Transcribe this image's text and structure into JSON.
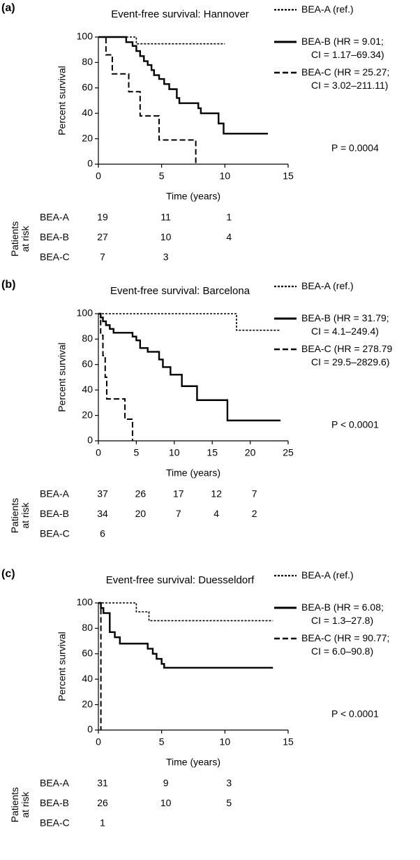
{
  "chart_data": [
    {
      "type": "step",
      "panel": "(a)",
      "title": "Event-free survival: Hannover",
      "xlabel": "Time (years)",
      "ylabel": "Percent survival",
      "xlim": [
        0,
        15
      ],
      "xticks": [
        0,
        5,
        10,
        15
      ],
      "ylim": [
        0,
        100
      ],
      "yticks": [
        0,
        20,
        40,
        60,
        80,
        100
      ],
      "series": [
        {
          "name": "BEA-A (ref.)",
          "color": "#000000",
          "linestyle": "dotted",
          "x": [
            0,
            3,
            3,
            10
          ],
          "values": [
            100,
            100,
            94.7,
            94.7
          ]
        },
        {
          "name": "BEA-B (HR = 9.01;\nCI = 1.17–69.34)",
          "color": "#000000",
          "linestyle": "solid",
          "x": [
            0,
            2.2,
            2.2,
            2.7,
            2.7,
            3,
            3,
            3.3,
            3.3,
            3.6,
            3.6,
            3.9,
            3.9,
            4.2,
            4.2,
            4.4,
            4.4,
            4.8,
            4.8,
            5.2,
            5.2,
            5.6,
            5.6,
            6.2,
            6.2,
            6.4,
            6.4,
            7.9,
            7.9,
            8.1,
            8.1,
            9.5,
            9.5,
            9.9,
            9.9,
            13.4
          ],
          "values": [
            100,
            100,
            96,
            96,
            93,
            93,
            89,
            89,
            85,
            85,
            81,
            81,
            78,
            78,
            74,
            74,
            70,
            70,
            67,
            67,
            63,
            63,
            59,
            59,
            52,
            52,
            48,
            48,
            44,
            44,
            40,
            40,
            32,
            32,
            24,
            24
          ]
        },
        {
          "name": "BEA-C (HR = 25.27;\nCI = 3.02–211.11)",
          "color": "#000000",
          "linestyle": "dashed",
          "x": [
            0,
            0.6,
            0.6,
            1.1,
            1.1,
            2.4,
            2.4,
            3.3,
            3.3,
            4.8,
            4.8,
            7.7,
            7.7
          ],
          "values": [
            100,
            100,
            86,
            86,
            71,
            71,
            57,
            57,
            38,
            38,
            19,
            19,
            0
          ]
        }
      ],
      "annotation": "P = 0.0004",
      "risk_table": {
        "label": "Patients\nat risk",
        "rows": [
          {
            "name": "BEA-A",
            "values": [
              19,
              11,
              1
            ]
          },
          {
            "name": "BEA-B",
            "values": [
              27,
              10,
              4
            ]
          },
          {
            "name": "BEA-C",
            "values": [
              7,
              3
            ]
          }
        ]
      }
    },
    {
      "type": "step",
      "panel": "(b)",
      "title": "Event-free survival: Barcelona",
      "xlabel": "Time (years)",
      "ylabel": "Percent survival",
      "xlim": [
        0,
        25
      ],
      "xticks": [
        0,
        5,
        10,
        15,
        20,
        25
      ],
      "ylim": [
        0,
        100
      ],
      "yticks": [
        0,
        20,
        40,
        60,
        80,
        100
      ],
      "series": [
        {
          "name": "BEA-A (ref.)",
          "color": "#000000",
          "linestyle": "dotted",
          "x": [
            0,
            18.2,
            18.2,
            24
          ],
          "values": [
            100,
            100,
            87,
            87
          ]
        },
        {
          "name": "BEA-B (HR = 31.79;\nCI = 4.1–249.4)",
          "color": "#000000",
          "linestyle": "solid",
          "x": [
            0,
            0.3,
            0.3,
            0.6,
            0.6,
            1,
            1,
            1.5,
            1.5,
            2,
            2,
            4.5,
            4.5,
            5,
            5,
            5.5,
            5.5,
            6.5,
            6.5,
            8,
            8,
            8.5,
            8.5,
            9.5,
            9.5,
            11,
            11,
            13,
            13,
            17,
            17,
            24
          ],
          "values": [
            100,
            100,
            97,
            97,
            94,
            94,
            91,
            91,
            88,
            88,
            85,
            85,
            82,
            82,
            79,
            79,
            73,
            73,
            70,
            70,
            64,
            64,
            58,
            58,
            52,
            52,
            43,
            43,
            32,
            32,
            16,
            16
          ]
        },
        {
          "name": "BEA-C (HR = 278.79\nCI = 29.5–2829.6)",
          "color": "#000000",
          "linestyle": "dashed",
          "x": [
            0,
            0.3,
            0.3,
            0.6,
            0.6,
            0.9,
            0.9,
            1.1,
            1.1,
            3.5,
            3.5,
            4.5,
            4.5
          ],
          "values": [
            100,
            100,
            83,
            83,
            67,
            67,
            50,
            50,
            33,
            33,
            17,
            17,
            0
          ]
        }
      ],
      "annotation": "P < 0.0001",
      "risk_table": {
        "label": "Patients\nat risk",
        "rows": [
          {
            "name": "BEA-A",
            "values": [
              37,
              26,
              17,
              12,
              7
            ]
          },
          {
            "name": "BEA-B",
            "values": [
              34,
              20,
              7,
              4,
              2
            ]
          },
          {
            "name": "BEA-C",
            "values": [
              6
            ]
          }
        ]
      }
    },
    {
      "type": "step",
      "panel": "(c)",
      "title": "Event-free survival: Duesseldorf",
      "xlabel": "Time (years)",
      "ylabel": "Percent survival",
      "xlim": [
        0,
        15
      ],
      "xticks": [
        0,
        5,
        10,
        15
      ],
      "ylim": [
        0,
        100
      ],
      "yticks": [
        0,
        20,
        40,
        60,
        80,
        100
      ],
      "series": [
        {
          "name": "BEA-A (ref.)",
          "color": "#000000",
          "linestyle": "dotted",
          "x": [
            0,
            3,
            3,
            4,
            4,
            13.8
          ],
          "values": [
            100,
            100,
            93,
            93,
            86,
            86
          ]
        },
        {
          "name": "BEA-B (HR = 6.08;\nCI = 1.3–27.8)",
          "color": "#000000",
          "linestyle": "solid",
          "x": [
            0,
            0.2,
            0.2,
            0.4,
            0.4,
            0.9,
            0.9,
            1.3,
            1.3,
            1.7,
            1.7,
            3.9,
            3.9,
            4.3,
            4.3,
            4.6,
            4.6,
            5,
            5,
            5.2,
            5.2,
            13.8
          ],
          "values": [
            100,
            100,
            96,
            96,
            92,
            92,
            77,
            77,
            73,
            73,
            68,
            68,
            64,
            64,
            60,
            60,
            56,
            56,
            52,
            52,
            49,
            49
          ]
        },
        {
          "name": "BEA-C (HR = 90.77;\nCI = 6.0–90.8)",
          "color": "#000000",
          "linestyle": "dashed",
          "x": [
            0,
            0.2,
            0.2
          ],
          "values": [
            100,
            100,
            0
          ]
        }
      ],
      "annotation": "P < 0.0001",
      "risk_table": {
        "label": "Patients\nat risk",
        "rows": [
          {
            "name": "BEA-A",
            "values": [
              31,
              9,
              3
            ]
          },
          {
            "name": "BEA-B",
            "values": [
              26,
              10,
              5
            ]
          },
          {
            "name": "BEA-C",
            "values": [
              1
            ]
          }
        ]
      }
    }
  ]
}
